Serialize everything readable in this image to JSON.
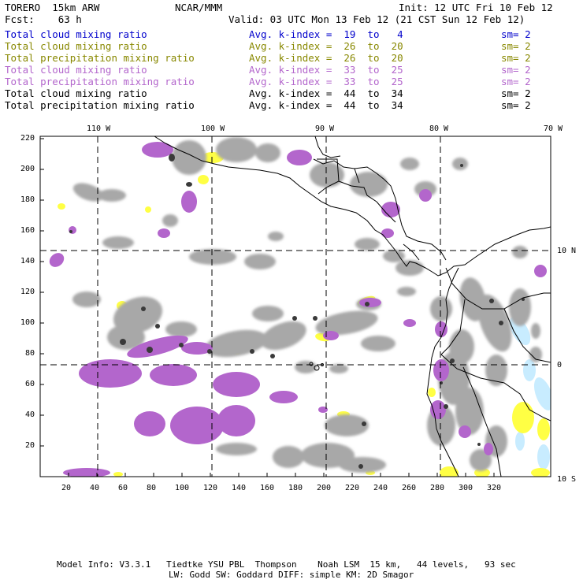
{
  "header": {
    "model": "TORERO  15km ARW",
    "org": "NCAR/MMM",
    "init": "Init: 12 UTC Fri 10 Feb 12",
    "fcst": "Fcst:    63 h",
    "valid": "Valid: 03 UTC Mon 13 Feb 12 (21 CST Sun 12 Feb 12)"
  },
  "legend": [
    {
      "field": "Total cloud mixing ratio",
      "kindex": "Avg. k-index =  19  to   4",
      "sm": "sm= 2",
      "color": "#0000cc"
    },
    {
      "field": "Total cloud mixing ratio",
      "kindex": "Avg. k-index =  26  to  20",
      "sm": "sm= 2",
      "color": "#888800"
    },
    {
      "field": "Total precipitation mixing ratio",
      "kindex": "Avg. k-index =  26  to  20",
      "sm": "sm= 2",
      "color": "#888800"
    },
    {
      "field": "Total cloud mixing ratio",
      "kindex": "Avg. k-index =  33  to  25",
      "sm": "sm= 2",
      "color": "#b366cc"
    },
    {
      "field": "Total precipitation mixing ratio",
      "kindex": "Avg. k-index =  33  to  25",
      "sm": "sm= 2",
      "color": "#b366cc"
    },
    {
      "field": "Total cloud mixing ratio",
      "kindex": "Avg. k-index =  44  to  34",
      "sm": "sm= 2",
      "color": "#000000"
    },
    {
      "field": "Total precipitation mixing ratio",
      "kindex": "Avg. k-index =  44  to  34",
      "sm": "sm= 2",
      "color": "#000000"
    }
  ],
  "map": {
    "lon_labels": [
      "110 W",
      "100 W",
      "90 W",
      "80 W",
      "70 W"
    ],
    "lat_labels": [
      "10 N",
      "0",
      "10 S"
    ],
    "x_ticks": [
      "20",
      "40",
      "60",
      "80",
      "100",
      "120",
      "140",
      "160",
      "180",
      "200",
      "220",
      "240",
      "260",
      "280",
      "300",
      "320"
    ],
    "y_ticks": [
      "220",
      "200",
      "180",
      "160",
      "140",
      "120",
      "100",
      "80",
      "60",
      "40",
      "20"
    ],
    "colors": {
      "gray": "#a8a8a8",
      "dark": "#3a3a3a",
      "purple": "#b366cc",
      "yellow": "#ffff44",
      "cyan": "#c8ecff"
    }
  },
  "footer": {
    "line1": "Model Info: V3.3.1   Tiedtke YSU PBL  Thompson    Noah LSM  15 km,   44 levels,   93 sec",
    "line2": "LW: Godd SW: Goddard DIFF: simple KM: 2D Smagor"
  }
}
